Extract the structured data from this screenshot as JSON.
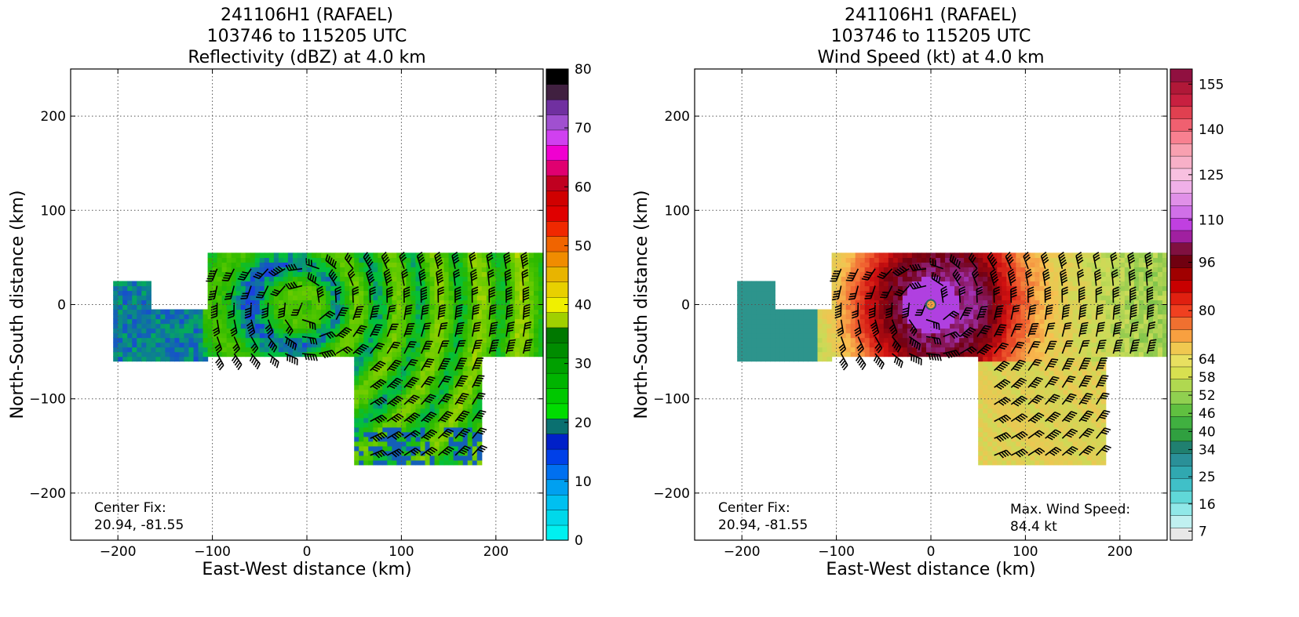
{
  "chart_data": [
    {
      "type": "heatmap",
      "title_lines": [
        "241106H1 (RAFAEL)",
        "103746 to 115205 UTC",
        "Reflectivity (dBZ) at 4.0 km"
      ],
      "xlabel": "East-West distance (km)",
      "ylabel": "North-South distance (km)",
      "xlim": [
        -250,
        250
      ],
      "ylim": [
        -250,
        250
      ],
      "xticks": [
        -200,
        -100,
        0,
        100,
        200
      ],
      "yticks": [
        -200,
        -100,
        0,
        100,
        200
      ],
      "grid": true,
      "annotation_left": [
        "Center Fix:",
        "20.94, -81.55"
      ],
      "annotation_right": [],
      "colorbar": {
        "vmin": 0,
        "vmax": 80,
        "tick_values": [
          0,
          10,
          20,
          30,
          40,
          50,
          60,
          70,
          80
        ],
        "tick_labels": [
          "0",
          "10",
          "20",
          "30",
          "40",
          "50",
          "60",
          "70",
          "80"
        ],
        "colors": [
          "#00f0f0",
          "#00d8ea",
          "#00c0f0",
          "#00a0f0",
          "#0070f0",
          "#0040e8",
          "#0020c8",
          "#0a7070",
          "#00dc00",
          "#00c800",
          "#00b400",
          "#00a000",
          "#008c00",
          "#007800",
          "#a0d000",
          "#f0f000",
          "#e8d000",
          "#e8b400",
          "#f08c00",
          "#f06400",
          "#f02800",
          "#e00000",
          "#d00000",
          "#c00020",
          "#e00070",
          "#f000d0",
          "#d040f0",
          "#a050d0",
          "#7030a0",
          "#402040",
          "#000000"
        ]
      },
      "field": {
        "kind": "reflectivity",
        "color_stops": [
          "#1a40e0",
          "#00c040",
          "#28b800",
          "#58c800",
          "#90d000",
          "#e8e000"
        ]
      },
      "wind_barbs": true
    },
    {
      "type": "heatmap",
      "title_lines": [
        "241106H1 (RAFAEL)",
        "103746 to 115205 UTC",
        "Wind Speed (kt) at 4.0 km"
      ],
      "xlabel": "East-West distance (km)",
      "ylabel": "North-South distance (km)",
      "xlim": [
        -250,
        250
      ],
      "ylim": [
        -250,
        250
      ],
      "xticks": [
        -200,
        -100,
        0,
        100,
        200
      ],
      "yticks": [
        -200,
        -100,
        0,
        100,
        200
      ],
      "grid": true,
      "annotation_left": [
        "Center Fix:",
        "20.94, -81.55"
      ],
      "annotation_right": [
        "Max. Wind Speed:",
        "84.4 kt"
      ],
      "colorbar": {
        "vmin": 4,
        "vmax": 160,
        "tick_values": [
          7,
          16,
          25,
          34,
          40,
          46,
          52,
          58,
          64,
          80,
          96,
          110,
          125,
          140,
          155
        ],
        "tick_labels": [
          "7",
          "16",
          "25",
          "34",
          "40",
          "46",
          "52",
          "58",
          "64",
          "80",
          "96",
          "110",
          "125",
          "140",
          "155"
        ],
        "colors": [
          "#e8e8e8",
          "#c0f0f0",
          "#90e8e8",
          "#60d8d8",
          "#40c0c8",
          "#30a8b0",
          "#2a9098",
          "#208070",
          "#30a040",
          "#40b040",
          "#60c040",
          "#90d050",
          "#b0d850",
          "#d8e050",
          "#e8e060",
          "#f0c850",
          "#f8a040",
          "#f07030",
          "#f04020",
          "#e02010",
          "#c80000",
          "#a00000",
          "#700010",
          "#801040",
          "#a020a0",
          "#c040e0",
          "#d070e8",
          "#e090e8",
          "#f0b0e8",
          "#f8c0e0",
          "#f8b0c8",
          "#f8a0b0",
          "#f88090",
          "#f06070",
          "#e04050",
          "#c82040",
          "#b01838",
          "#901040"
        ]
      },
      "field": {
        "kind": "wind",
        "color_stops": [
          "#2a9098",
          "#40b040",
          "#c8dc58",
          "#f8c050",
          "#f06030",
          "#d01010",
          "#700010",
          "#b040e0"
        ]
      },
      "wind_barbs": true,
      "center_marker": true
    }
  ]
}
